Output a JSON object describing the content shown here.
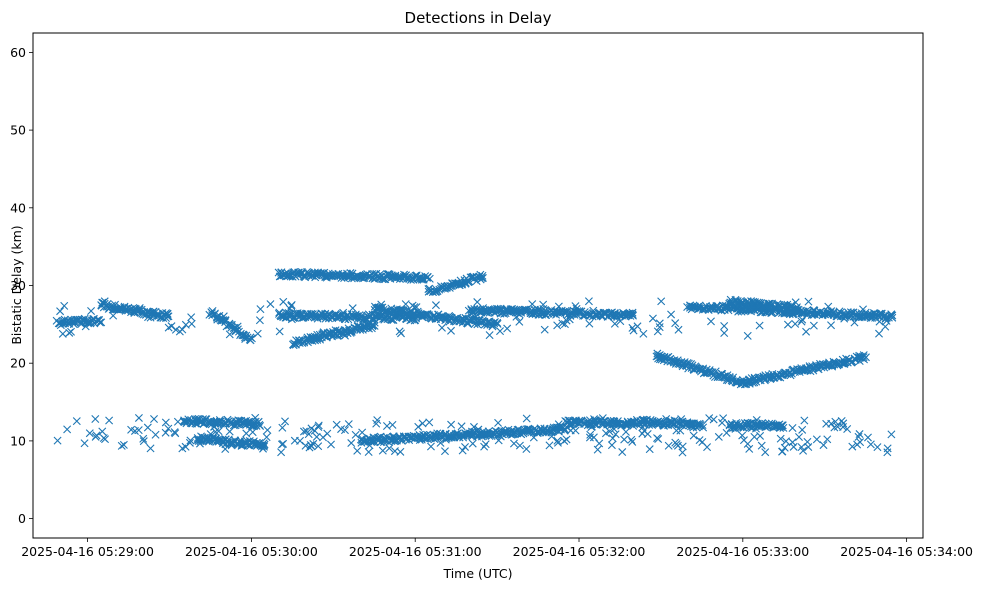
{
  "chart_data": {
    "type": "scatter",
    "title": "Detections in Delay",
    "xlabel": "Time (UTC)",
    "ylabel": "Bistatic Delay (km)",
    "marker": "x",
    "color": "#1f77b4",
    "grid": false,
    "legend": "none",
    "xlim": [
      "2025-04-16 05:28:40",
      "2025-04-16 05:34:06"
    ],
    "ylim": [
      -2.5,
      62.5
    ],
    "xticks": [
      "2025-04-16 05:29:00",
      "2025-04-16 05:30:00",
      "2025-04-16 05:31:00",
      "2025-04-16 05:32:00",
      "2025-04-16 05:33:00",
      "2025-04-16 05:34:00"
    ],
    "yticks": [
      0,
      10,
      20,
      30,
      40,
      50,
      60
    ],
    "start_time": "2025-04-16 05:28:49",
    "end_time": "2025-04-16 05:33:55",
    "point_estimate": 1500,
    "tracks": [
      {
        "t0": "2025-04-16 05:28:49",
        "t1": "2025-04-16 05:29:05",
        "y0": 25.2,
        "y1": 25.5
      },
      {
        "t0": "2025-04-16 05:29:05",
        "t1": "2025-04-16 05:29:30",
        "y0": 27.5,
        "y1": 26.0
      },
      {
        "t0": "2025-04-16 05:29:35",
        "t1": "2025-04-16 05:30:03",
        "y0": 12.6,
        "y1": 12.2
      },
      {
        "t0": "2025-04-16 05:29:40",
        "t1": "2025-04-16 05:30:05",
        "y0": 10.2,
        "y1": 9.5
      },
      {
        "t0": "2025-04-16 05:29:45",
        "t1": "2025-04-16 05:30:00",
        "y0": 26.5,
        "y1": 23.0
      },
      {
        "t0": "2025-04-16 05:30:10",
        "t1": "2025-04-16 05:31:05",
        "y0": 31.5,
        "y1": 31.0
      },
      {
        "t0": "2025-04-16 05:30:10",
        "t1": "2025-04-16 05:31:00",
        "y0": 26.2,
        "y1": 25.8
      },
      {
        "t0": "2025-04-16 05:30:15",
        "t1": "2025-04-16 05:30:45",
        "y0": 22.6,
        "y1": 24.9
      },
      {
        "t0": "2025-04-16 05:30:45",
        "t1": "2025-04-16 05:31:30",
        "y0": 27.0,
        "y1": 25.0
      },
      {
        "t0": "2025-04-16 05:31:05",
        "t1": "2025-04-16 05:31:25",
        "y0": 29.2,
        "y1": 31.2
      },
      {
        "t0": "2025-04-16 05:30:40",
        "t1": "2025-04-16 05:31:55",
        "y0": 10.0,
        "y1": 11.5
      },
      {
        "t0": "2025-04-16 05:31:20",
        "t1": "2025-04-16 05:32:20",
        "y0": 26.8,
        "y1": 26.2
      },
      {
        "t0": "2025-04-16 05:31:55",
        "t1": "2025-04-16 05:32:20",
        "y0": 12.4,
        "y1": 12.2
      },
      {
        "t0": "2025-04-16 05:32:20",
        "t1": "2025-04-16 05:32:45",
        "y0": 12.5,
        "y1": 12.0
      },
      {
        "t0": "2025-04-16 05:32:40",
        "t1": "2025-04-16 05:33:55",
        "y0": 27.3,
        "y1": 26.0
      },
      {
        "t0": "2025-04-16 05:32:28",
        "t1": "2025-04-16 05:33:00",
        "y0": 21.0,
        "y1": 17.5
      },
      {
        "t0": "2025-04-16 05:33:00",
        "t1": "2025-04-16 05:33:45",
        "y0": 17.5,
        "y1": 20.8
      },
      {
        "t0": "2025-04-16 05:32:55",
        "t1": "2025-04-16 05:33:15",
        "y0": 12.0,
        "y1": 12.0
      },
      {
        "t0": "2025-04-16 05:32:55",
        "t1": "2025-04-16 05:33:20",
        "y0": 28.0,
        "y1": 27.0
      }
    ]
  }
}
